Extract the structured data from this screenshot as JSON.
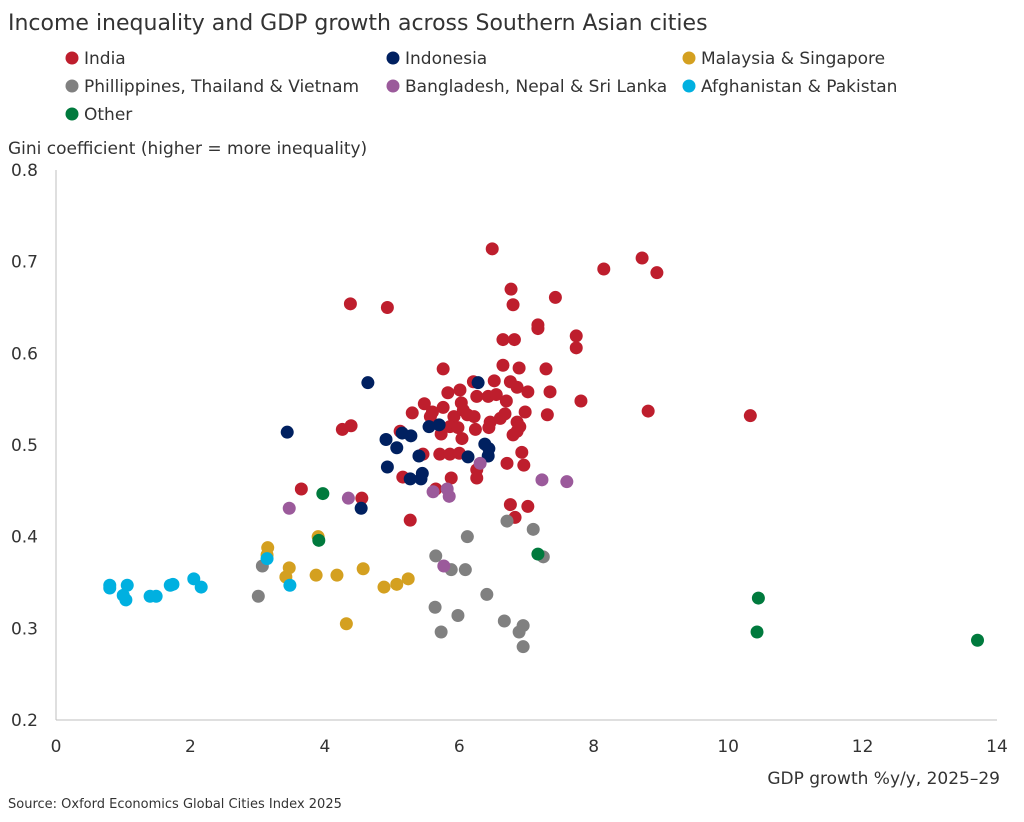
{
  "chart_data": {
    "type": "scatter",
    "title": "Income inequality and GDP growth across Southern Asian cities",
    "ylabel": "Gini coefficient (higher = more inequality)",
    "xlabel": "GDP growth %y/y, 2025–29",
    "source": "Source: Oxford Economics Global Cities Index 2025",
    "xlim": [
      0,
      14
    ],
    "ylim": [
      0.2,
      0.8
    ],
    "xticks": [
      0,
      2,
      4,
      6,
      8,
      10,
      12,
      14
    ],
    "yticks": [
      0.2,
      0.3,
      0.4,
      0.5,
      0.6,
      0.7,
      0.8
    ],
    "ytick_labels": [
      "0.2",
      "0.3",
      "0.4",
      "0.5",
      "0.6",
      "0.7",
      "0.8"
    ],
    "grid": false,
    "legend_placement": "top",
    "series": [
      {
        "name": "India",
        "color": "#be1e2d",
        "points": [
          [
            6.49,
            0.714
          ],
          [
            8.72,
            0.704
          ],
          [
            8.15,
            0.692
          ],
          [
            8.94,
            0.688
          ],
          [
            4.38,
            0.654
          ],
          [
            4.93,
            0.65
          ],
          [
            7.43,
            0.661
          ],
          [
            6.77,
            0.67
          ],
          [
            6.8,
            0.653
          ],
          [
            7.17,
            0.631
          ],
          [
            7.17,
            0.627
          ],
          [
            7.74,
            0.619
          ],
          [
            7.74,
            0.606
          ],
          [
            6.65,
            0.615
          ],
          [
            6.82,
            0.615
          ],
          [
            5.76,
            0.583
          ],
          [
            6.65,
            0.587
          ],
          [
            6.89,
            0.584
          ],
          [
            7.29,
            0.583
          ],
          [
            6.21,
            0.569
          ],
          [
            6.52,
            0.57
          ],
          [
            6.76,
            0.569
          ],
          [
            6.86,
            0.563
          ],
          [
            7.02,
            0.558
          ],
          [
            7.35,
            0.558
          ],
          [
            5.83,
            0.557
          ],
          [
            6.01,
            0.56
          ],
          [
            6.26,
            0.553
          ],
          [
            6.43,
            0.553
          ],
          [
            6.55,
            0.555
          ],
          [
            6.7,
            0.548
          ],
          [
            7.81,
            0.548
          ],
          [
            5.48,
            0.545
          ],
          [
            5.76,
            0.541
          ],
          [
            6.03,
            0.546
          ],
          [
            6.06,
            0.538
          ],
          [
            5.3,
            0.535
          ],
          [
            5.6,
            0.536
          ],
          [
            5.92,
            0.531
          ],
          [
            6.12,
            0.533
          ],
          [
            6.22,
            0.531
          ],
          [
            6.46,
            0.525
          ],
          [
            6.61,
            0.529
          ],
          [
            6.68,
            0.534
          ],
          [
            6.98,
            0.536
          ],
          [
            7.31,
            0.533
          ],
          [
            6.86,
            0.525
          ],
          [
            6.9,
            0.52
          ],
          [
            6.8,
            0.511
          ],
          [
            6.86,
            0.515
          ],
          [
            5.86,
            0.52
          ],
          [
            5.98,
            0.519
          ],
          [
            6.24,
            0.517
          ],
          [
            6.44,
            0.519
          ],
          [
            5.73,
            0.512
          ],
          [
            6.04,
            0.507
          ],
          [
            4.26,
            0.517
          ],
          [
            4.39,
            0.521
          ],
          [
            5.12,
            0.515
          ],
          [
            5.46,
            0.49
          ],
          [
            5.71,
            0.49
          ],
          [
            5.86,
            0.49
          ],
          [
            6.0,
            0.491
          ],
          [
            6.93,
            0.492
          ],
          [
            6.26,
            0.473
          ],
          [
            6.26,
            0.464
          ],
          [
            6.71,
            0.48
          ],
          [
            6.96,
            0.478
          ],
          [
            5.88,
            0.464
          ],
          [
            5.16,
            0.465
          ],
          [
            3.65,
            0.452
          ],
          [
            4.55,
            0.442
          ],
          [
            5.65,
            0.452
          ],
          [
            5.27,
            0.418
          ],
          [
            6.76,
            0.435
          ],
          [
            7.02,
            0.433
          ],
          [
            6.83,
            0.421
          ],
          [
            8.81,
            0.537
          ],
          [
            10.33,
            0.532
          ],
          [
            5.57,
            0.531
          ]
        ]
      },
      {
        "name": "Indonesia",
        "color": "#002060",
        "points": [
          [
            3.44,
            0.514
          ],
          [
            4.64,
            0.568
          ],
          [
            6.28,
            0.568
          ],
          [
            4.91,
            0.506
          ],
          [
            5.07,
            0.497
          ],
          [
            5.15,
            0.513
          ],
          [
            5.28,
            0.51
          ],
          [
            5.55,
            0.52
          ],
          [
            5.7,
            0.522
          ],
          [
            5.4,
            0.488
          ],
          [
            4.93,
            0.476
          ],
          [
            5.27,
            0.463
          ],
          [
            5.45,
            0.469
          ],
          [
            5.43,
            0.463
          ],
          [
            6.13,
            0.487
          ],
          [
            6.38,
            0.501
          ],
          [
            6.44,
            0.496
          ],
          [
            6.43,
            0.488
          ],
          [
            4.54,
            0.431
          ]
        ]
      },
      {
        "name": "Malaysia & Singapore",
        "color": "#d4a020",
        "points": [
          [
            3.9,
            0.4
          ],
          [
            3.15,
            0.388
          ],
          [
            3.14,
            0.38
          ],
          [
            3.47,
            0.366
          ],
          [
            3.42,
            0.356
          ],
          [
            3.87,
            0.358
          ],
          [
            4.18,
            0.358
          ],
          [
            4.57,
            0.365
          ],
          [
            4.88,
            0.345
          ],
          [
            5.07,
            0.348
          ],
          [
            5.24,
            0.354
          ],
          [
            4.32,
            0.305
          ]
        ]
      },
      {
        "name": "Phillippines, Thailand & Vietnam",
        "color": "#808080",
        "points": [
          [
            3.07,
            0.368
          ],
          [
            3.01,
            0.335
          ],
          [
            6.12,
            0.4
          ],
          [
            5.65,
            0.379
          ],
          [
            5.88,
            0.364
          ],
          [
            6.09,
            0.364
          ],
          [
            6.71,
            0.417
          ],
          [
            7.1,
            0.408
          ],
          [
            7.25,
            0.378
          ],
          [
            6.41,
            0.337
          ],
          [
            5.64,
            0.323
          ],
          [
            5.98,
            0.314
          ],
          [
            5.73,
            0.296
          ],
          [
            6.67,
            0.308
          ],
          [
            6.95,
            0.303
          ],
          [
            6.89,
            0.296
          ],
          [
            6.95,
            0.28
          ]
        ]
      },
      {
        "name": "Bangladesh, Nepal & Sri Lanka",
        "color": "#9b5a9b",
        "points": [
          [
            6.31,
            0.48
          ],
          [
            7.23,
            0.462
          ],
          [
            7.6,
            0.46
          ],
          [
            5.61,
            0.449
          ],
          [
            5.82,
            0.452
          ],
          [
            5.85,
            0.444
          ],
          [
            4.35,
            0.442
          ],
          [
            3.47,
            0.431
          ],
          [
            5.77,
            0.368
          ]
        ]
      },
      {
        "name": "Afghanistan & Pakistan",
        "color": "#00b0e0",
        "points": [
          [
            0.8,
            0.347
          ],
          [
            0.8,
            0.344
          ],
          [
            1.06,
            0.347
          ],
          [
            1.0,
            0.336
          ],
          [
            1.04,
            0.331
          ],
          [
            1.4,
            0.335
          ],
          [
            1.49,
            0.335
          ],
          [
            1.7,
            0.347
          ],
          [
            1.74,
            0.348
          ],
          [
            2.05,
            0.354
          ],
          [
            2.16,
            0.345
          ],
          [
            3.14,
            0.376
          ],
          [
            3.48,
            0.347
          ]
        ]
      },
      {
        "name": "Other",
        "color": "#007a3d",
        "points": [
          [
            3.97,
            0.447
          ],
          [
            3.91,
            0.396
          ],
          [
            7.17,
            0.381
          ],
          [
            10.45,
            0.333
          ],
          [
            10.43,
            0.296
          ],
          [
            13.71,
            0.287
          ]
        ]
      }
    ]
  }
}
